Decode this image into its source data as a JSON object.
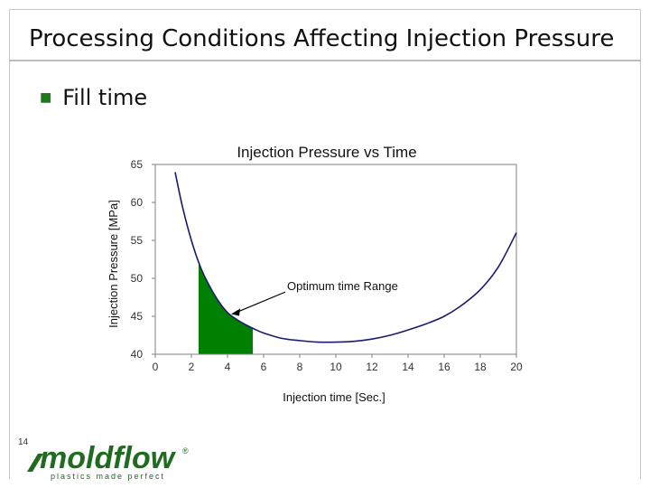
{
  "slide": {
    "title": "Processing Conditions Affecting Injection Pressure",
    "bullet": "Fill time",
    "page_number": "14"
  },
  "logo": {
    "brand": "moldflow",
    "tagline": "plastics made perfect",
    "registered": "®"
  },
  "annotation": "Optimum time Range",
  "chart_data": {
    "type": "line",
    "title": "Injection Pressure vs Time",
    "xlabel": "Injection time [Sec.]",
    "ylabel": "Injection Pressure [MPa]",
    "xlim": [
      0,
      20
    ],
    "ylim": [
      40,
      65
    ],
    "xticks": [
      0,
      2,
      4,
      6,
      8,
      10,
      12,
      14,
      16,
      18,
      20
    ],
    "yticks": [
      40,
      45,
      50,
      55,
      60,
      65
    ],
    "grid": false,
    "series": [
      {
        "name": "",
        "x": [
          1.1,
          1.5,
          2.0,
          2.5,
          3.0,
          3.5,
          4.0,
          4.5,
          5.0,
          5.5,
          6.0,
          7.0,
          8.0,
          9.0,
          10.0,
          11.0,
          12.0,
          13.0,
          14.0,
          15.0,
          16.0,
          17.0,
          18.0,
          19.0,
          20.0
        ],
        "y": [
          64.0,
          59.5,
          55.0,
          51.5,
          49.0,
          47.0,
          45.5,
          44.6,
          43.9,
          43.3,
          42.8,
          42.1,
          41.8,
          41.6,
          41.6,
          41.7,
          42.0,
          42.5,
          43.2,
          44.0,
          45.0,
          46.5,
          48.5,
          51.5,
          56.0
        ],
        "color": "#1a1a6e"
      }
    ],
    "highlight_range": {
      "x": [
        2.4,
        5.4
      ],
      "color": "#008000"
    },
    "annotation_point": {
      "x": 4.2,
      "y": 45.3
    },
    "colors": {
      "axis": "#808080",
      "fill": "#008000",
      "line": "#1a1a6e"
    }
  }
}
